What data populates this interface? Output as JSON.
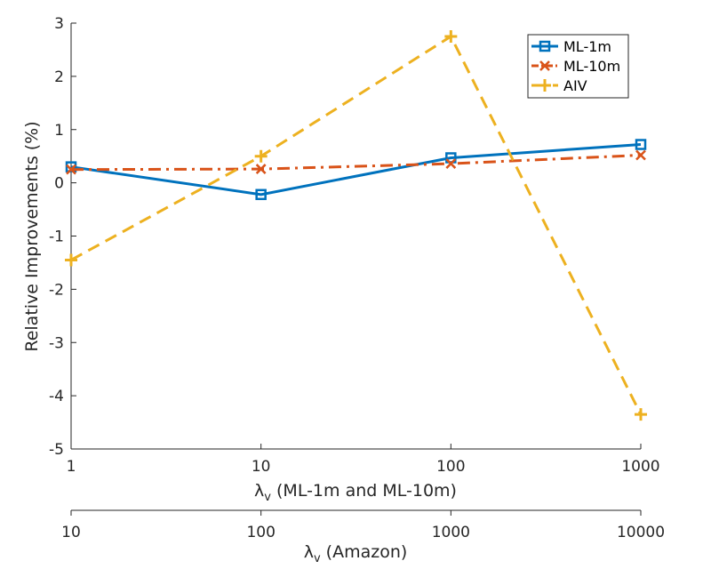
{
  "chart_data": {
    "type": "line",
    "xscale": "log",
    "x": [
      1,
      10,
      100,
      1000
    ],
    "xlim": [
      1,
      1000
    ],
    "ylim": [
      -5,
      3
    ],
    "yticks": [
      -5,
      -4,
      -3,
      -2,
      -1,
      0,
      1,
      2,
      3
    ],
    "xticks": [
      "1",
      "10",
      "100",
      "1000"
    ],
    "ylabel": "Relative Improvements (%)",
    "xlabel": {
      "symbol": "λ",
      "sub": "v",
      "text": " (ML-1m and ML-10m)"
    },
    "x2ticks": [
      "10",
      "100",
      "1000",
      "10000"
    ],
    "x2label": {
      "symbol": "λ",
      "sub": "v",
      "text": " (Amazon)"
    },
    "grid": false,
    "legend_position": "top-right",
    "series": [
      {
        "name": "ML-1m",
        "values": [
          0.3,
          -0.22,
          0.47,
          0.72
        ],
        "color": "#0072bd",
        "marker": "square",
        "dash": "solid"
      },
      {
        "name": "ML-10m",
        "values": [
          0.25,
          0.26,
          0.36,
          0.52
        ],
        "color": "#d95319",
        "marker": "x",
        "dash": "dashdot"
      },
      {
        "name": "AIV",
        "values": [
          -1.45,
          0.5,
          2.75,
          -4.35
        ],
        "color": "#edb120",
        "marker": "plus",
        "dash": "dashed"
      }
    ]
  }
}
